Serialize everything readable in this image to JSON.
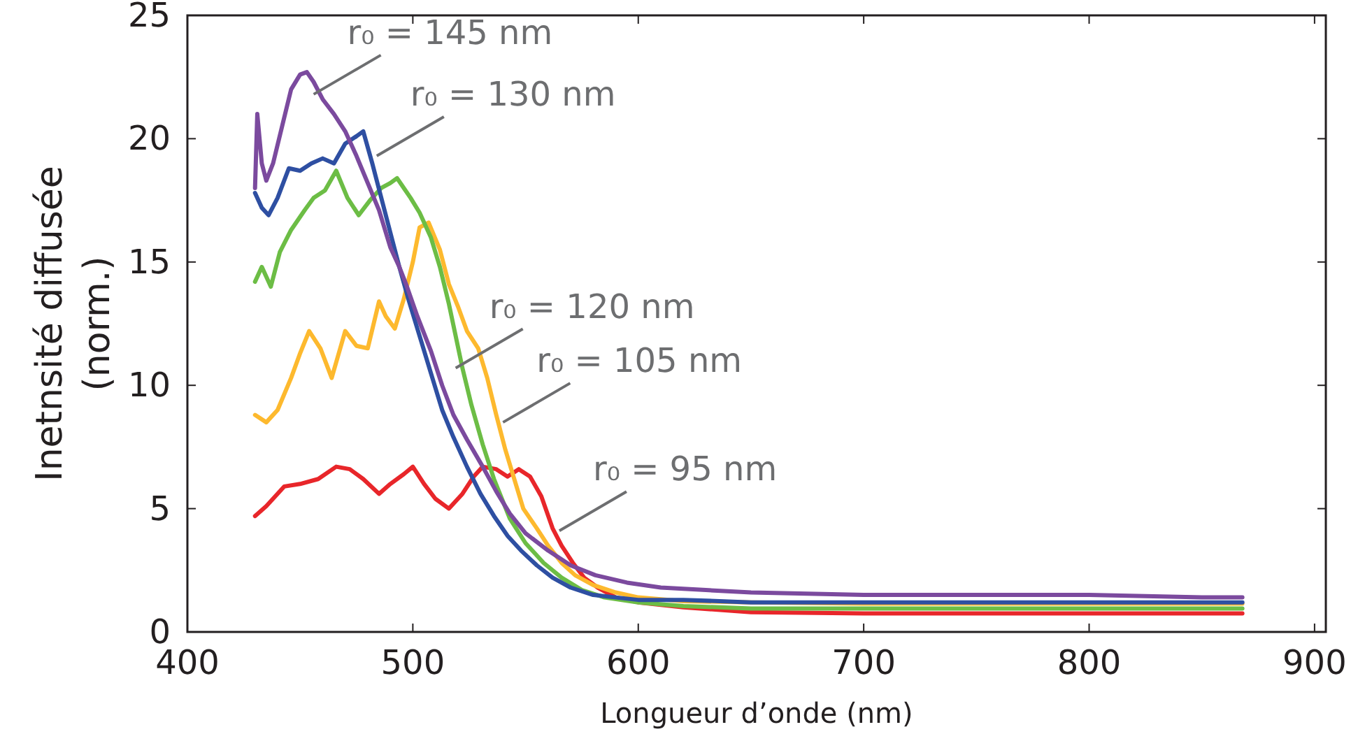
{
  "chart_data": {
    "type": "line",
    "xlabel": "Longueur d’onde (nm)",
    "ylabel": "Inetnsité diffusée (norm.)",
    "xlim": [
      400,
      905
    ],
    "xticks": [
      400,
      500,
      600,
      700,
      800,
      900
    ],
    "ylim": [
      0,
      25
    ],
    "yticks": [
      0,
      5,
      10,
      15,
      20,
      25
    ],
    "grid": false,
    "line_style": "solid",
    "marker": "none",
    "series": [
      {
        "color": "#e8262a",
        "x": [
          430,
          435,
          443,
          450,
          458,
          466,
          472,
          478,
          485,
          490,
          496,
          500,
          505,
          510,
          516,
          522,
          527,
          531,
          537,
          542,
          547,
          552,
          557,
          562,
          566,
          571,
          576,
          582,
          590,
          600,
          620,
          650,
          700,
          750,
          800,
          850,
          868
        ],
        "values": [
          4.7,
          5.1,
          5.9,
          6.0,
          6.2,
          6.7,
          6.6,
          6.2,
          5.6,
          6.0,
          6.4,
          6.7,
          6.0,
          5.4,
          5.0,
          5.6,
          6.3,
          6.7,
          6.6,
          6.3,
          6.6,
          6.3,
          5.5,
          4.2,
          3.5,
          2.8,
          2.2,
          1.8,
          1.4,
          1.2,
          1.0,
          0.8,
          0.75,
          0.75,
          0.75,
          0.75,
          0.75
        ]
      },
      {
        "color": "#fdb92e",
        "x": [
          430,
          435,
          440,
          446,
          450,
          454,
          459,
          464,
          470,
          475,
          480,
          485,
          488,
          492,
          496,
          500,
          503,
          507,
          512,
          516,
          520,
          524,
          529,
          533,
          537,
          541,
          545,
          549,
          555,
          560,
          566,
          572,
          580,
          590,
          600,
          620,
          650,
          700,
          750,
          800,
          850,
          868
        ],
        "values": [
          8.8,
          8.5,
          9.0,
          10.3,
          11.3,
          12.2,
          11.5,
          10.3,
          12.2,
          11.6,
          11.5,
          13.4,
          12.8,
          12.3,
          13.5,
          15.0,
          16.4,
          16.6,
          15.5,
          14.1,
          13.2,
          12.2,
          11.5,
          10.3,
          8.8,
          7.4,
          6.2,
          5.0,
          4.2,
          3.5,
          2.8,
          2.3,
          1.9,
          1.6,
          1.4,
          1.25,
          1.2,
          1.15,
          1.15,
          1.15,
          1.15,
          1.15
        ]
      },
      {
        "color": "#6cbd45",
        "x": [
          430,
          433,
          437,
          441,
          446,
          452,
          456,
          461,
          466,
          471,
          476,
          481,
          486,
          490,
          493,
          496,
          499,
          503,
          508,
          512,
          516,
          519,
          522,
          526,
          531,
          536,
          543,
          550,
          558,
          566,
          575,
          585,
          600,
          620,
          650,
          700,
          750,
          800,
          850,
          868
        ],
        "values": [
          14.2,
          14.8,
          14.0,
          15.4,
          16.3,
          17.1,
          17.6,
          17.9,
          18.7,
          17.6,
          16.9,
          17.5,
          18.0,
          18.2,
          18.4,
          18.0,
          17.6,
          17.0,
          16.0,
          14.8,
          13.3,
          12.0,
          10.7,
          9.2,
          7.6,
          6.2,
          4.6,
          3.6,
          2.8,
          2.2,
          1.7,
          1.4,
          1.2,
          1.05,
          0.95,
          0.95,
          0.95,
          0.95,
          0.95,
          0.95
        ]
      },
      {
        "color": "#2e4fa2",
        "x": [
          430,
          433,
          436,
          440,
          445,
          450,
          455,
          460,
          465,
          470,
          475,
          478,
          482,
          486,
          490,
          494,
          498,
          503,
          508,
          513,
          518,
          524,
          530,
          536,
          542,
          548,
          555,
          562,
          570,
          580,
          590,
          600,
          620,
          650,
          700,
          750,
          800,
          850,
          868
        ],
        "values": [
          17.8,
          17.2,
          16.9,
          17.6,
          18.8,
          18.7,
          19.0,
          19.2,
          19.0,
          19.8,
          20.1,
          20.3,
          19.0,
          17.6,
          16.2,
          14.8,
          13.5,
          12.0,
          10.5,
          9.0,
          7.9,
          6.7,
          5.6,
          4.7,
          3.9,
          3.3,
          2.7,
          2.2,
          1.8,
          1.5,
          1.4,
          1.3,
          1.3,
          1.2,
          1.2,
          1.2,
          1.2,
          1.2,
          1.2
        ]
      },
      {
        "color": "#7b4a9e",
        "x": [
          430,
          431,
          433,
          435,
          438,
          442,
          446,
          450,
          453,
          456,
          460,
          465,
          470,
          475,
          480,
          485,
          490,
          494,
          497,
          502,
          508,
          513,
          518,
          524,
          531,
          537,
          543,
          550,
          560,
          570,
          581,
          595,
          610,
          630,
          650,
          700,
          750,
          800,
          850,
          868
        ],
        "values": [
          18.0,
          21.0,
          19.0,
          18.3,
          19.0,
          20.5,
          22.0,
          22.6,
          22.7,
          22.3,
          21.6,
          21.0,
          20.3,
          19.3,
          18.2,
          17.1,
          15.6,
          14.8,
          14.1,
          12.8,
          11.4,
          10.0,
          8.8,
          7.8,
          6.7,
          5.7,
          4.8,
          4.0,
          3.3,
          2.7,
          2.3,
          2.0,
          1.8,
          1.7,
          1.6,
          1.5,
          1.5,
          1.5,
          1.4,
          1.4
        ]
      }
    ],
    "annotations": [
      {
        "text": "r₀ = 145 nm",
        "x": 456,
        "y": 21.8
      },
      {
        "text": "r₀ = 130 nm",
        "x": 484,
        "y": 19.3
      },
      {
        "text": "r₀ = 120 nm",
        "x": 519,
        "y": 10.7
      },
      {
        "text": "r₀ = 105 nm",
        "x": 540,
        "y": 8.5
      },
      {
        "text": "r₀ = 95 nm",
        "x": 565,
        "y": 4.1
      }
    ]
  }
}
